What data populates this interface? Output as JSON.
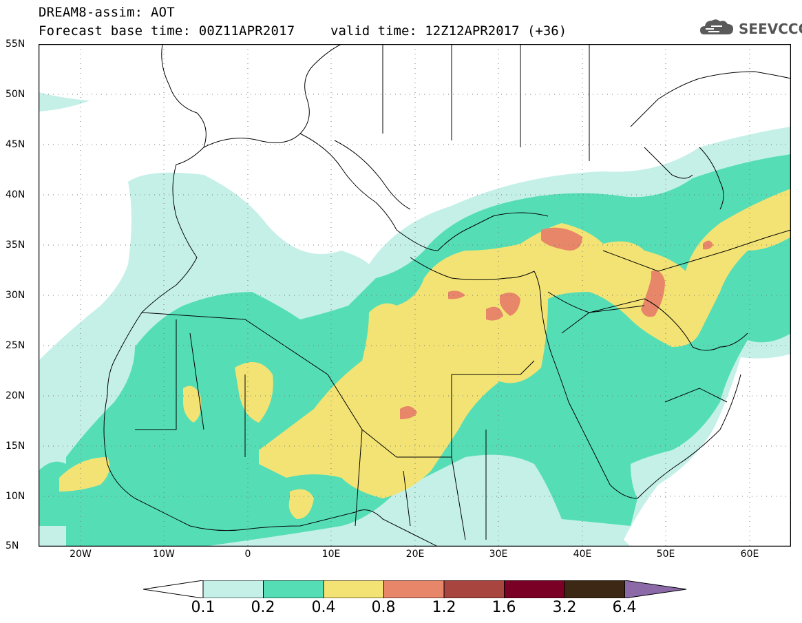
{
  "header": {
    "title": "DREAM8-assim: AOT",
    "base_time": "Forecast base time: 00Z11APR2017",
    "valid_time": "valid time: 12Z12APR2017 (+36)",
    "logo_text": "SEEVCCC",
    "logo_icon": "cloud-logo-icon"
  },
  "map": {
    "lon_range": [
      -25,
      65
    ],
    "lat_range": [
      5,
      55
    ],
    "lat_labels": [
      "55N",
      "50N",
      "45N",
      "40N",
      "35N",
      "30N",
      "25N",
      "20N",
      "15N",
      "10N",
      "5N"
    ],
    "lon_labels": [
      "20W",
      "10W",
      "0",
      "10E",
      "20E",
      "30E",
      "40E",
      "50E",
      "60E"
    ],
    "background": "#ffffff",
    "coastline_color": "#000000"
  },
  "colorbar": {
    "labels": [
      "0.1",
      "0.2",
      "0.4",
      "0.8",
      "1.2",
      "1.6",
      "3.2",
      "6.4"
    ],
    "colors": [
      "#c4f0e8",
      "#55deb6",
      "#f3e374",
      "#e8866a",
      "#a9453f",
      "#7b0026",
      "#3c2814",
      "#8c6aa8"
    ]
  }
}
